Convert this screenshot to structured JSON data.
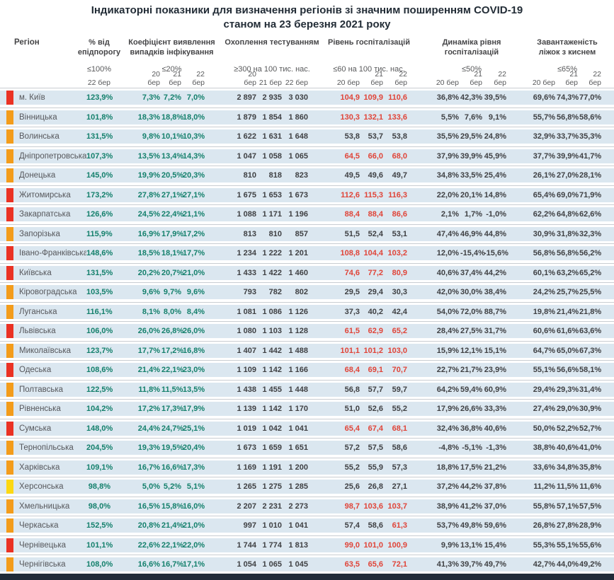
{
  "colors": {
    "red": "#ea3224",
    "orange": "#f39c1b",
    "yellow": "#fcd813",
    "teal_value": "#14806c",
    "alert_value": "#e04438",
    "dark_value": "#3f4043",
    "row_band": "#dbe7f0",
    "footer_navy": "#202b39"
  },
  "chart_data": {
    "type": "table",
    "title": "Індикаторні показники для визначення регіонів зі значним поширенням COVID-19",
    "subtitle": "станом на 23 березня 2021 року",
    "region_header": "Регіон",
    "column_groups": [
      {
        "id": "epid",
        "title": "% від епідпорогу",
        "threshold": "≤100%",
        "dates": [
          "22 бер"
        ]
      },
      {
        "id": "coef",
        "title": "Коефіцієнт виявлення випадків інфікування",
        "threshold": "≤20%",
        "dates": [
          "20 бер",
          "21 бер",
          "22 бер"
        ]
      },
      {
        "id": "test",
        "title": "Охоплення тестуванням",
        "threshold": "≥300 на 100 тис. нас.",
        "dates": [
          "20 бер",
          "21 бер",
          "22 бер"
        ]
      },
      {
        "id": "hosp",
        "title": "Рівень госпіталізацій",
        "threshold": "≤60 на 100 тис. нас.",
        "dates": [
          "20 бер",
          "21 бер",
          "22 бер"
        ]
      },
      {
        "id": "dyn",
        "title": "Динаміка рівня госпіталізацій",
        "threshold": "≤50%",
        "dates": [
          "20 бер",
          "21 бер",
          "22 бер"
        ]
      },
      {
        "id": "beds",
        "title": "Завантаженість ліжок з киснем",
        "threshold": "≤65%",
        "dates": [
          "20 бер",
          "21 бер",
          "22 бер"
        ]
      }
    ],
    "rows": [
      {
        "region": "м. Київ",
        "indicator": "red",
        "epid": "123,9%",
        "coef": [
          "7,3%",
          "7,2%",
          "7,0%"
        ],
        "test": [
          "2 897",
          "2 935",
          "3 030"
        ],
        "hosp": [
          "104,9",
          "109,9",
          "110,6"
        ],
        "hosp_alert": [
          true,
          true,
          true
        ],
        "dyn": [
          "36,8%",
          "42,3%",
          "39,5%"
        ],
        "beds": [
          "69,6%",
          "74,3%",
          "77,0%"
        ]
      },
      {
        "region": "Вінницька",
        "indicator": "orange",
        "epid": "101,8%",
        "coef": [
          "18,3%",
          "18,8%",
          "18,0%"
        ],
        "test": [
          "1 879",
          "1 854",
          "1 860"
        ],
        "hosp": [
          "130,3",
          "132,1",
          "133,6"
        ],
        "hosp_alert": [
          true,
          true,
          true
        ],
        "dyn": [
          "5,5%",
          "7,6%",
          "9,1%"
        ],
        "beds": [
          "55,7%",
          "56,8%",
          "58,6%"
        ]
      },
      {
        "region": "Волинська",
        "indicator": "orange",
        "epid": "131,5%",
        "coef": [
          "9,8%",
          "10,1%",
          "10,3%"
        ],
        "test": [
          "1 622",
          "1 631",
          "1 648"
        ],
        "hosp": [
          "53,8",
          "53,7",
          "53,8"
        ],
        "hosp_alert": [
          false,
          false,
          false
        ],
        "dyn": [
          "35,5%",
          "29,5%",
          "24,8%"
        ],
        "beds": [
          "32,9%",
          "33,7%",
          "35,3%"
        ]
      },
      {
        "region": "Дніпропетровська",
        "indicator": "orange",
        "epid": "107,3%",
        "coef": [
          "13,5%",
          "13,4%",
          "14,3%"
        ],
        "test": [
          "1 047",
          "1 058",
          "1 065"
        ],
        "hosp": [
          "64,5",
          "66,0",
          "68,0"
        ],
        "hosp_alert": [
          true,
          true,
          true
        ],
        "dyn": [
          "37,9%",
          "39,9%",
          "45,9%"
        ],
        "beds": [
          "37,7%",
          "39,9%",
          "41,7%"
        ]
      },
      {
        "region": "Донецька",
        "indicator": "orange",
        "epid": "145,0%",
        "coef": [
          "19,9%",
          "20,5%",
          "20,3%"
        ],
        "test": [
          "810",
          "818",
          "823"
        ],
        "hosp": [
          "49,5",
          "49,6",
          "49,7"
        ],
        "hosp_alert": [
          false,
          false,
          false
        ],
        "dyn": [
          "34,8%",
          "33,5%",
          "25,4%"
        ],
        "beds": [
          "26,1%",
          "27,0%",
          "28,1%"
        ]
      },
      {
        "region": "Житомирська",
        "indicator": "red",
        "epid": "173,2%",
        "coef": [
          "27,8%",
          "27,1%",
          "27,1%"
        ],
        "test": [
          "1 675",
          "1 653",
          "1 673"
        ],
        "hosp": [
          "112,6",
          "115,3",
          "116,3"
        ],
        "hosp_alert": [
          true,
          true,
          true
        ],
        "dyn": [
          "22,0%",
          "20,1%",
          "14,8%"
        ],
        "beds": [
          "65,4%",
          "69,0%",
          "71,9%"
        ]
      },
      {
        "region": "Закарпатська",
        "indicator": "red",
        "epid": "126,6%",
        "coef": [
          "24,5%",
          "22,4%",
          "21,1%"
        ],
        "test": [
          "1 088",
          "1 171",
          "1 196"
        ],
        "hosp": [
          "88,4",
          "88,4",
          "86,6"
        ],
        "hosp_alert": [
          true,
          true,
          true
        ],
        "dyn": [
          "2,1%",
          "1,7%",
          "-1,0%"
        ],
        "beds": [
          "62,2%",
          "64,8%",
          "62,6%"
        ]
      },
      {
        "region": "Запорізька",
        "indicator": "orange",
        "epid": "115,9%",
        "coef": [
          "16,9%",
          "17,9%",
          "17,2%"
        ],
        "test": [
          "813",
          "810",
          "857"
        ],
        "hosp": [
          "51,5",
          "52,4",
          "53,1"
        ],
        "hosp_alert": [
          false,
          false,
          false
        ],
        "dyn": [
          "47,4%",
          "46,9%",
          "44,8%"
        ],
        "beds": [
          "30,9%",
          "31,8%",
          "32,3%"
        ]
      },
      {
        "region": "Івано-Франківська",
        "indicator": "red",
        "epid": "148,6%",
        "coef": [
          "18,5%",
          "18,1%",
          "17,7%"
        ],
        "test": [
          "1 234",
          "1 222",
          "1 201"
        ],
        "hosp": [
          "108,8",
          "104,4",
          "103,2"
        ],
        "hosp_alert": [
          true,
          true,
          true
        ],
        "dyn": [
          "12,0%",
          "-15,4%",
          "-15,6%"
        ],
        "beds": [
          "56,8%",
          "56,8%",
          "56,2%"
        ]
      },
      {
        "region": "Київська",
        "indicator": "red",
        "epid": "131,5%",
        "coef": [
          "20,2%",
          "20,7%",
          "21,0%"
        ],
        "test": [
          "1 433",
          "1 422",
          "1 460"
        ],
        "hosp": [
          "74,6",
          "77,2",
          "80,9"
        ],
        "hosp_alert": [
          true,
          true,
          true
        ],
        "dyn": [
          "40,6%",
          "37,4%",
          "44,2%"
        ],
        "beds": [
          "60,1%",
          "63,2%",
          "65,2%"
        ]
      },
      {
        "region": "Кіровоградська",
        "indicator": "orange",
        "epid": "103,5%",
        "coef": [
          "9,6%",
          "9,7%",
          "9,6%"
        ],
        "test": [
          "793",
          "782",
          "802"
        ],
        "hosp": [
          "29,5",
          "29,4",
          "30,3"
        ],
        "hosp_alert": [
          false,
          false,
          false
        ],
        "dyn": [
          "42,0%",
          "30,0%",
          "38,4%"
        ],
        "beds": [
          "24,2%",
          "25,7%",
          "25,5%"
        ]
      },
      {
        "region": "Луганська",
        "indicator": "orange",
        "epid": "116,1%",
        "coef": [
          "8,1%",
          "8,0%",
          "8,4%"
        ],
        "test": [
          "1 081",
          "1 086",
          "1 126"
        ],
        "hosp": [
          "37,3",
          "40,2",
          "42,4"
        ],
        "hosp_alert": [
          false,
          false,
          false
        ],
        "dyn": [
          "54,0%",
          "72,0%",
          "88,7%"
        ],
        "beds": [
          "19,8%",
          "21,4%",
          "21,8%"
        ]
      },
      {
        "region": "Львівська",
        "indicator": "red",
        "epid": "106,0%",
        "coef": [
          "26,0%",
          "26,8%",
          "26,0%"
        ],
        "test": [
          "1 080",
          "1 103",
          "1 128"
        ],
        "hosp": [
          "61,5",
          "62,9",
          "65,2"
        ],
        "hosp_alert": [
          true,
          true,
          true
        ],
        "dyn": [
          "28,4%",
          "27,5%",
          "31,7%"
        ],
        "beds": [
          "60,6%",
          "61,6%",
          "63,6%"
        ]
      },
      {
        "region": "Миколаївська",
        "indicator": "orange",
        "epid": "123,7%",
        "coef": [
          "17,7%",
          "17,2%",
          "16,8%"
        ],
        "test": [
          "1 407",
          "1 442",
          "1 488"
        ],
        "hosp": [
          "101,1",
          "101,2",
          "103,0"
        ],
        "hosp_alert": [
          true,
          true,
          true
        ],
        "dyn": [
          "15,9%",
          "12,1%",
          "15,1%"
        ],
        "beds": [
          "64,7%",
          "65,0%",
          "67,3%"
        ]
      },
      {
        "region": "Одеська",
        "indicator": "red",
        "epid": "108,6%",
        "coef": [
          "21,4%",
          "22,1%",
          "23,0%"
        ],
        "test": [
          "1 109",
          "1 142",
          "1 166"
        ],
        "hosp": [
          "68,4",
          "69,1",
          "70,7"
        ],
        "hosp_alert": [
          true,
          true,
          true
        ],
        "dyn": [
          "22,7%",
          "21,7%",
          "23,9%"
        ],
        "beds": [
          "55,1%",
          "56,6%",
          "58,1%"
        ]
      },
      {
        "region": "Полтавська",
        "indicator": "orange",
        "epid": "122,5%",
        "coef": [
          "11,8%",
          "11,5%",
          "13,5%"
        ],
        "test": [
          "1 438",
          "1 455",
          "1 448"
        ],
        "hosp": [
          "56,8",
          "57,7",
          "59,7"
        ],
        "hosp_alert": [
          false,
          false,
          false
        ],
        "dyn": [
          "64,2%",
          "59,4%",
          "60,9%"
        ],
        "beds": [
          "29,4%",
          "29,3%",
          "31,4%"
        ]
      },
      {
        "region": "Рівненська",
        "indicator": "orange",
        "epid": "104,2%",
        "coef": [
          "17,2%",
          "17,3%",
          "17,9%"
        ],
        "test": [
          "1 139",
          "1 142",
          "1 170"
        ],
        "hosp": [
          "51,0",
          "52,6",
          "55,2"
        ],
        "hosp_alert": [
          false,
          false,
          false
        ],
        "dyn": [
          "17,9%",
          "26,6%",
          "33,3%"
        ],
        "beds": [
          "27,4%",
          "29,0%",
          "30,9%"
        ]
      },
      {
        "region": "Сумська",
        "indicator": "red",
        "epid": "148,0%",
        "coef": [
          "24,4%",
          "24,7%",
          "25,1%"
        ],
        "test": [
          "1 019",
          "1 042",
          "1 041"
        ],
        "hosp": [
          "65,4",
          "67,4",
          "68,1"
        ],
        "hosp_alert": [
          true,
          true,
          true
        ],
        "dyn": [
          "32,4%",
          "36,8%",
          "40,6%"
        ],
        "beds": [
          "50,0%",
          "52,2%",
          "52,7%"
        ]
      },
      {
        "region": "Тернопільська",
        "indicator": "orange",
        "epid": "204,5%",
        "coef": [
          "19,3%",
          "19,5%",
          "20,4%"
        ],
        "test": [
          "1 673",
          "1 659",
          "1 651"
        ],
        "hosp": [
          "57,2",
          "57,5",
          "58,6"
        ],
        "hosp_alert": [
          false,
          false,
          false
        ],
        "dyn": [
          "-4,8%",
          "-5,1%",
          "-1,3%"
        ],
        "beds": [
          "38,8%",
          "40,6%",
          "41,0%"
        ]
      },
      {
        "region": "Харківська",
        "indicator": "orange",
        "epid": "109,1%",
        "coef": [
          "16,7%",
          "16,6%",
          "17,3%"
        ],
        "test": [
          "1 169",
          "1 191",
          "1 200"
        ],
        "hosp": [
          "55,2",
          "55,9",
          "57,3"
        ],
        "hosp_alert": [
          false,
          false,
          false
        ],
        "dyn": [
          "18,8%",
          "17,5%",
          "21,2%"
        ],
        "beds": [
          "33,6%",
          "34,8%",
          "35,8%"
        ]
      },
      {
        "region": "Херсонська",
        "indicator": "yellow",
        "epid": "98,8%",
        "coef": [
          "5,0%",
          "5,2%",
          "5,1%"
        ],
        "test": [
          "1 265",
          "1 275",
          "1 285"
        ],
        "hosp": [
          "25,6",
          "26,8",
          "27,1"
        ],
        "hosp_alert": [
          false,
          false,
          false
        ],
        "dyn": [
          "37,2%",
          "44,2%",
          "37,8%"
        ],
        "beds": [
          "11,2%",
          "11,5%",
          "11,6%"
        ]
      },
      {
        "region": "Хмельницька",
        "indicator": "orange",
        "epid": "98,0%",
        "coef": [
          "16,5%",
          "15,8%",
          "16,0%"
        ],
        "test": [
          "2 207",
          "2 231",
          "2 273"
        ],
        "hosp": [
          "98,7",
          "103,6",
          "103,7"
        ],
        "hosp_alert": [
          true,
          true,
          true
        ],
        "dyn": [
          "38,9%",
          "41,2%",
          "37,0%"
        ],
        "beds": [
          "55,8%",
          "57,1%",
          "57,5%"
        ]
      },
      {
        "region": "Черкаська",
        "indicator": "orange",
        "epid": "152,5%",
        "coef": [
          "20,8%",
          "21,4%",
          "21,0%"
        ],
        "test": [
          "997",
          "1 010",
          "1 041"
        ],
        "hosp": [
          "57,4",
          "58,6",
          "61,3"
        ],
        "hosp_alert": [
          false,
          false,
          true
        ],
        "dyn": [
          "53,7%",
          "49,8%",
          "59,6%"
        ],
        "beds": [
          "26,8%",
          "27,8%",
          "28,9%"
        ]
      },
      {
        "region": "Чернівецька",
        "indicator": "red",
        "epid": "101,1%",
        "coef": [
          "22,6%",
          "22,1%",
          "22,0%"
        ],
        "test": [
          "1 744",
          "1 774",
          "1 813"
        ],
        "hosp": [
          "99,0",
          "101,0",
          "100,9"
        ],
        "hosp_alert": [
          true,
          true,
          true
        ],
        "dyn": [
          "9,9%",
          "13,1%",
          "15,4%"
        ],
        "beds": [
          "55,3%",
          "55,1%",
          "55,6%"
        ]
      },
      {
        "region": "Чернігівська",
        "indicator": "orange",
        "epid": "108,0%",
        "coef": [
          "16,6%",
          "16,7%",
          "17,1%"
        ],
        "test": [
          "1 054",
          "1 065",
          "1 045"
        ],
        "hosp": [
          "63,5",
          "65,6",
          "72,1"
        ],
        "hosp_alert": [
          true,
          true,
          true
        ],
        "dyn": [
          "41,3%",
          "39,7%",
          "49,7%"
        ],
        "beds": [
          "42,7%",
          "44,0%",
          "49,2%"
        ]
      }
    ]
  }
}
